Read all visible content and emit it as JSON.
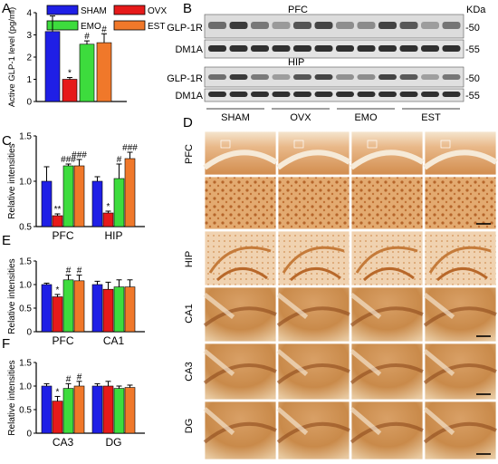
{
  "panels": {
    "A": "A",
    "B": "B",
    "C": "C",
    "D": "D",
    "E": "E",
    "F": "F"
  },
  "legend": [
    {
      "label": "SHAM",
      "color": "#1f1fe6"
    },
    {
      "label": "OVX",
      "color": "#e61a1a"
    },
    {
      "label": "EMO",
      "color": "#3ddc3d"
    },
    {
      "label": "EST",
      "color": "#f0782a"
    }
  ],
  "blot": {
    "kda_label": "KDa",
    "pfc_title": "PFC",
    "hip_title": "HIP",
    "rows": [
      {
        "label": "GLP-1R",
        "mw": "-50"
      },
      {
        "label": "DM1A",
        "mw": "-55"
      },
      {
        "label": "GLP-1R",
        "mw": "-50"
      },
      {
        "label": "DM1A",
        "mw": "-55"
      }
    ],
    "groups": [
      "SHAM",
      "OVX",
      "EMO",
      "EST"
    ]
  },
  "histology": {
    "rows": [
      "PFC",
      "",
      "HIP",
      "CA1",
      "CA3",
      "DG"
    ]
  },
  "chart_data": [
    {
      "panel": "A",
      "type": "bar",
      "ylabel": "Active GLP-1 level (pg/ml)",
      "ylim": [
        0,
        4
      ],
      "yticks": [
        0,
        1,
        2,
        3,
        4
      ],
      "categories": [
        ""
      ],
      "series": [
        {
          "name": "SHAM",
          "values": [
            3.15
          ],
          "err": [
            0.7
          ],
          "mark": ""
        },
        {
          "name": "OVX",
          "values": [
            1.0
          ],
          "err": [
            0.08
          ],
          "mark": "*"
        },
        {
          "name": "EMO",
          "values": [
            2.58
          ],
          "err": [
            0.15
          ],
          "mark": "#"
        },
        {
          "name": "EST",
          "values": [
            2.65
          ],
          "err": [
            0.4
          ],
          "mark": "#"
        }
      ]
    },
    {
      "panel": "C",
      "type": "bar",
      "ylabel": "Relative intensities",
      "ylim": [
        0.5,
        1.5
      ],
      "yticks": [
        0.5,
        1.0,
        1.5
      ],
      "categories": [
        "PFC",
        "HIP"
      ],
      "series": [
        {
          "name": "SHAM",
          "values": [
            1.0,
            1.0
          ],
          "err": [
            0.16,
            0.05
          ],
          "marks": [
            "",
            ""
          ]
        },
        {
          "name": "OVX",
          "values": [
            0.62,
            0.65
          ],
          "err": [
            0.02,
            0.02
          ],
          "marks": [
            "**",
            "*"
          ]
        },
        {
          "name": "EMO",
          "values": [
            1.17,
            1.03
          ],
          "err": [
            0.02,
            0.16
          ],
          "marks": [
            "###",
            "#"
          ]
        },
        {
          "name": "EST",
          "values": [
            1.17,
            1.25
          ],
          "err": [
            0.07,
            0.07
          ],
          "marks": [
            "###",
            "###"
          ]
        }
      ]
    },
    {
      "panel": "E",
      "type": "bar",
      "ylabel": "Relative intensities",
      "ylim": [
        0,
        1.5
      ],
      "yticks": [
        0,
        0.5,
        1.0,
        1.5
      ],
      "categories": [
        "PFC",
        "CA1"
      ],
      "series": [
        {
          "name": "SHAM",
          "values": [
            1.0,
            1.0
          ],
          "err": [
            0.03,
            0.07
          ],
          "marks": [
            "",
            ""
          ]
        },
        {
          "name": "OVX",
          "values": [
            0.74,
            0.9
          ],
          "err": [
            0.05,
            0.15
          ],
          "marks": [
            "*",
            ""
          ]
        },
        {
          "name": "EMO",
          "values": [
            1.1,
            0.95
          ],
          "err": [
            0.1,
            0.15
          ],
          "marks": [
            "#",
            ""
          ]
        },
        {
          "name": "EST",
          "values": [
            1.08,
            0.95
          ],
          "err": [
            0.12,
            0.15
          ],
          "marks": [
            "#",
            ""
          ]
        }
      ]
    },
    {
      "panel": "F",
      "type": "bar",
      "ylabel": "Relative intensities",
      "ylim": [
        0,
        1.5
      ],
      "yticks": [
        0,
        0.5,
        1.0,
        1.5
      ],
      "categories": [
        "CA3",
        "DG"
      ],
      "series": [
        {
          "name": "SHAM",
          "values": [
            1.0,
            1.0
          ],
          "err": [
            0.05,
            0.05
          ],
          "marks": [
            "",
            ""
          ]
        },
        {
          "name": "OVX",
          "values": [
            0.68,
            1.0
          ],
          "err": [
            0.1,
            0.1
          ],
          "marks": [
            "*",
            ""
          ]
        },
        {
          "name": "EMO",
          "values": [
            0.95,
            0.95
          ],
          "err": [
            0.1,
            0.05
          ],
          "marks": [
            "#",
            ""
          ]
        },
        {
          "name": "EST",
          "values": [
            1.0,
            0.97
          ],
          "err": [
            0.1,
            0.05
          ],
          "marks": [
            "#",
            ""
          ]
        }
      ]
    }
  ]
}
